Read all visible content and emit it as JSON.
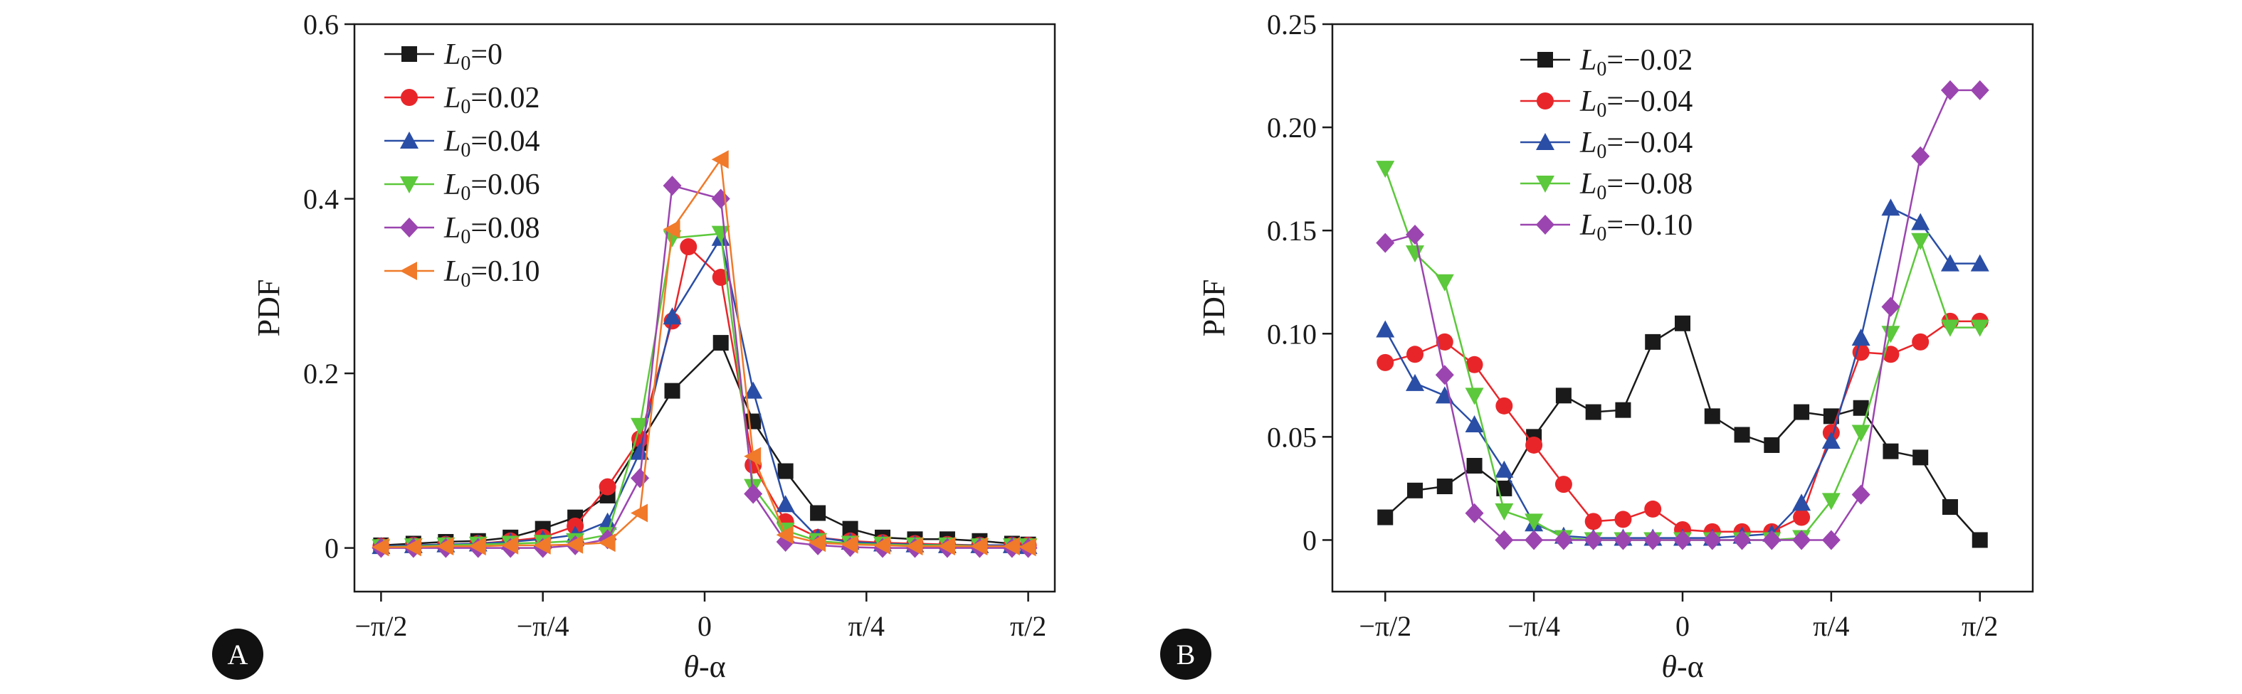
{
  "chart_data": [
    {
      "type": "line",
      "panel": "A",
      "xlabel": "θ-α",
      "ylabel": "PDF",
      "xlim": [
        -1.7,
        1.7
      ],
      "ylim": [
        -0.05,
        0.6
      ],
      "xticks": [
        -1.5708,
        -0.7854,
        0,
        0.7854,
        1.5708
      ],
      "xtick_labels": [
        "−π/2",
        "−π/4",
        "0",
        "π/4",
        "π/2"
      ],
      "yticks": [
        0,
        0.2,
        0.4,
        0.6
      ],
      "ytick_labels": [
        "0",
        "0.2",
        "0.4",
        "0.6"
      ],
      "grid": false,
      "legend_position": "top-left",
      "series": [
        {
          "name": "L0=0",
          "label_main": "L",
          "label_sub": "0",
          "label_rest": "=0",
          "color": "#1a1a1a",
          "marker": "square",
          "x": [
            -1.5708,
            -1.4137,
            -1.2566,
            -1.0996,
            -0.9425,
            -0.7854,
            -0.6283,
            -0.4712,
            -0.3142,
            -0.1571,
            0.0785,
            0.2356,
            0.3927,
            0.5498,
            0.7069,
            0.8639,
            1.021,
            1.1781,
            1.3352,
            1.4923,
            1.5708
          ],
          "y": [
            0.003,
            0.005,
            0.007,
            0.008,
            0.012,
            0.022,
            0.035,
            0.06,
            0.12,
            0.18,
            0.235,
            0.145,
            0.088,
            0.04,
            0.022,
            0.012,
            0.01,
            0.01,
            0.008,
            0.005,
            0.004
          ]
        },
        {
          "name": "L0=0.02",
          "label_main": "L",
          "label_sub": "0",
          "label_rest": "=0.02",
          "color": "#e8262a",
          "marker": "circle",
          "x": [
            -1.5708,
            -1.4137,
            -1.2566,
            -1.0996,
            -0.9425,
            -0.7854,
            -0.6283,
            -0.4712,
            -0.3142,
            -0.1571,
            -0.0785,
            0.0785,
            0.2356,
            0.3927,
            0.5498,
            0.7069,
            0.8639,
            1.021,
            1.1781,
            1.3352,
            1.4923,
            1.5708
          ],
          "y": [
            0.002,
            0.003,
            0.004,
            0.005,
            0.008,
            0.012,
            0.025,
            0.07,
            0.125,
            0.26,
            0.345,
            0.31,
            0.095,
            0.03,
            0.012,
            0.008,
            0.006,
            0.005,
            0.004,
            0.003,
            0.003,
            0.003
          ]
        },
        {
          "name": "L0=0.04",
          "label_main": "L",
          "label_sub": "0",
          "label_rest": "=0.04",
          "color": "#2a4ea6",
          "marker": "triangle-up",
          "x": [
            -1.5708,
            -1.4137,
            -1.2566,
            -1.0996,
            -0.9425,
            -0.7854,
            -0.6283,
            -0.4712,
            -0.3142,
            -0.1571,
            0.0785,
            0.2356,
            0.3927,
            0.5498,
            0.7069,
            0.8639,
            1.021,
            1.1781,
            1.3352,
            1.4923,
            1.5708
          ],
          "y": [
            0.002,
            0.003,
            0.004,
            0.005,
            0.007,
            0.01,
            0.015,
            0.03,
            0.11,
            0.265,
            0.355,
            0.18,
            0.05,
            0.012,
            0.007,
            0.005,
            0.004,
            0.003,
            0.003,
            0.003,
            0.002
          ]
        },
        {
          "name": "L0=0.06",
          "label_main": "L",
          "label_sub": "0",
          "label_rest": "=0.06",
          "color": "#5cc83b",
          "marker": "triangle-down",
          "x": [
            -1.5708,
            -1.4137,
            -1.2566,
            -1.0996,
            -0.9425,
            -0.7854,
            -0.6283,
            -0.4712,
            -0.3142,
            -0.1571,
            0.0785,
            0.2356,
            0.3927,
            0.5498,
            0.7069,
            0.8639,
            1.021,
            1.1781,
            1.3352,
            1.4923,
            1.5708
          ],
          "y": [
            0.001,
            0.002,
            0.003,
            0.004,
            0.005,
            0.006,
            0.008,
            0.015,
            0.14,
            0.355,
            0.36,
            0.07,
            0.02,
            0.008,
            0.005,
            0.004,
            0.003,
            0.003,
            0.002,
            0.002,
            0.002
          ]
        },
        {
          "name": "L0=0.08",
          "label_main": "L",
          "label_sub": "0",
          "label_rest": "=0.08",
          "color": "#9b45b0",
          "marker": "diamond",
          "x": [
            -1.5708,
            -1.4137,
            -1.2566,
            -1.0996,
            -0.9425,
            -0.7854,
            -0.6283,
            -0.4712,
            -0.3142,
            -0.1571,
            0.0785,
            0.2356,
            0.3927,
            0.5498,
            0.7069,
            0.8639,
            1.021,
            1.1781,
            1.3352,
            1.4923,
            1.5708
          ],
          "y": [
            0.0,
            0.0,
            0.0,
            0.0,
            0.0,
            0.0,
            0.003,
            0.01,
            0.08,
            0.415,
            0.4,
            0.062,
            0.007,
            0.003,
            0.001,
            0.0,
            0.0,
            0.0,
            0.0,
            0.0,
            0.0
          ]
        },
        {
          "name": "L0=0.10",
          "label_main": "L",
          "label_sub": "0",
          "label_rest": "=0.10",
          "color": "#f07a2a",
          "marker": "triangle-left",
          "x": [
            -1.5708,
            -1.4137,
            -1.2566,
            -1.0996,
            -0.9425,
            -0.7854,
            -0.6283,
            -0.4712,
            -0.3142,
            -0.1571,
            0.0785,
            0.2356,
            0.3927,
            0.5498,
            0.7069,
            0.8639,
            1.021,
            1.1781,
            1.3352,
            1.4923,
            1.5708
          ],
          "y": [
            0.001,
            0.001,
            0.002,
            0.002,
            0.003,
            0.003,
            0.004,
            0.006,
            0.04,
            0.365,
            0.445,
            0.105,
            0.015,
            0.006,
            0.004,
            0.003,
            0.002,
            0.002,
            0.002,
            0.002,
            0.001
          ]
        }
      ]
    },
    {
      "type": "line",
      "panel": "B",
      "xlabel": "θ-α",
      "ylabel": "PDF",
      "xlim": [
        -1.85,
        1.85
      ],
      "ylim": [
        -0.025,
        0.25
      ],
      "xticks": [
        -1.5708,
        -0.7854,
        0,
        0.7854,
        1.5708
      ],
      "xtick_labels": [
        "−π/2",
        "−π/4",
        "0",
        "π/4",
        "π/2"
      ],
      "yticks": [
        0,
        0.05,
        0.1,
        0.15,
        0.2,
        0.25
      ],
      "ytick_labels": [
        "0",
        "0.05",
        "0.10",
        "0.15",
        "0.20",
        "0.25"
      ],
      "grid": false,
      "legend_position": "top-center",
      "series": [
        {
          "name": "L0=−0.02",
          "label_main": "L",
          "label_sub": "0",
          "label_rest": "=−0.02",
          "color": "#1a1a1a",
          "marker": "square",
          "x": [
            -1.5708,
            -1.4137,
            -1.2566,
            -1.0996,
            -0.9425,
            -0.7854,
            -0.6283,
            -0.4712,
            -0.3142,
            -0.1571,
            0.0,
            0.1571,
            0.3142,
            0.4712,
            0.6283,
            0.7854,
            0.9425,
            1.0996,
            1.2566,
            1.4137,
            1.5708
          ],
          "y": [
            0.011,
            0.024,
            0.026,
            0.036,
            0.025,
            0.05,
            0.07,
            0.062,
            0.063,
            0.096,
            0.105,
            0.06,
            0.051,
            0.046,
            0.062,
            0.06,
            0.064,
            0.043,
            0.04,
            0.016,
            0.0
          ]
        },
        {
          "name": "L0=−0.04",
          "label_main": "L",
          "label_sub": "0",
          "label_rest": "=−0.04",
          "color": "#e8262a",
          "marker": "circle",
          "x": [
            -1.5708,
            -1.4137,
            -1.2566,
            -1.0996,
            -0.9425,
            -0.7854,
            -0.6283,
            -0.4712,
            -0.3142,
            -0.1571,
            0.0,
            0.1571,
            0.3142,
            0.4712,
            0.6283,
            0.7854,
            0.9425,
            1.0996,
            1.2566,
            1.4137,
            1.5708
          ],
          "y": [
            0.086,
            0.09,
            0.096,
            0.085,
            0.065,
            0.046,
            0.027,
            0.009,
            0.01,
            0.015,
            0.005,
            0.004,
            0.004,
            0.004,
            0.011,
            0.052,
            0.091,
            0.09,
            0.096,
            0.106,
            0.106
          ]
        },
        {
          "name": "L0=−0.04",
          "label_main": "L",
          "label_sub": "0",
          "label_rest": "=−0.04",
          "color": "#2a4ea6",
          "marker": "triangle-up",
          "x": [
            -1.5708,
            -1.4137,
            -1.2566,
            -1.0996,
            -0.9425,
            -0.7854,
            -0.6283,
            -0.4712,
            -0.3142,
            -0.1571,
            0.0,
            0.1571,
            0.3142,
            0.4712,
            0.6283,
            0.7854,
            0.9425,
            1.0996,
            1.2566,
            1.4137,
            1.5708
          ],
          "y": [
            0.102,
            0.076,
            0.07,
            0.056,
            0.034,
            0.008,
            0.002,
            0.001,
            0.001,
            0.001,
            0.001,
            0.001,
            0.002,
            0.003,
            0.018,
            0.048,
            0.098,
            0.161,
            0.154,
            0.134,
            0.134
          ]
        },
        {
          "name": "L0=−0.08",
          "label_main": "L",
          "label_sub": "0",
          "label_rest": "=−0.08",
          "color": "#5cc83b",
          "marker": "triangle-down",
          "x": [
            -1.5708,
            -1.4137,
            -1.2566,
            -1.0996,
            -0.9425,
            -0.7854,
            -0.6283,
            -0.4712,
            -0.3142,
            -0.1571,
            0.0,
            0.1571,
            0.3142,
            0.4712,
            0.6283,
            0.7854,
            0.9425,
            1.0996,
            1.2566,
            1.4137,
            1.5708
          ],
          "y": [
            0.18,
            0.139,
            0.125,
            0.07,
            0.014,
            0.009,
            0.001,
            0.0,
            0.0,
            0.0,
            0.0,
            0.0,
            0.0,
            0.0,
            0.001,
            0.019,
            0.052,
            0.1,
            0.145,
            0.103,
            0.103
          ]
        },
        {
          "name": "L0=−0.10",
          "label_main": "L",
          "label_sub": "0",
          "label_rest": "=−0.10",
          "color": "#9b45b0",
          "marker": "diamond",
          "x": [
            -1.5708,
            -1.4137,
            -1.2566,
            -1.0996,
            -0.9425,
            -0.7854,
            -0.6283,
            -0.4712,
            -0.3142,
            -0.1571,
            0.0,
            0.1571,
            0.3142,
            0.4712,
            0.6283,
            0.7854,
            0.9425,
            1.0996,
            1.2566,
            1.4137,
            1.5708
          ],
          "y": [
            0.144,
            0.148,
            0.08,
            0.013,
            0.0,
            0.0,
            0.0,
            0.0,
            0.0,
            0.0,
            0.0,
            0.0,
            0.0,
            0.0,
            0.0,
            0.0,
            0.022,
            0.113,
            0.186,
            0.218,
            0.218
          ]
        }
      ]
    }
  ],
  "panels": {
    "a": {
      "letter": "A",
      "xlabel_main": "θ",
      "xlabel_rest": "-α",
      "ylabel": "PDF"
    },
    "b": {
      "letter": "B",
      "xlabel_main": "θ",
      "xlabel_rest": "-α",
      "ylabel": "PDF"
    }
  }
}
